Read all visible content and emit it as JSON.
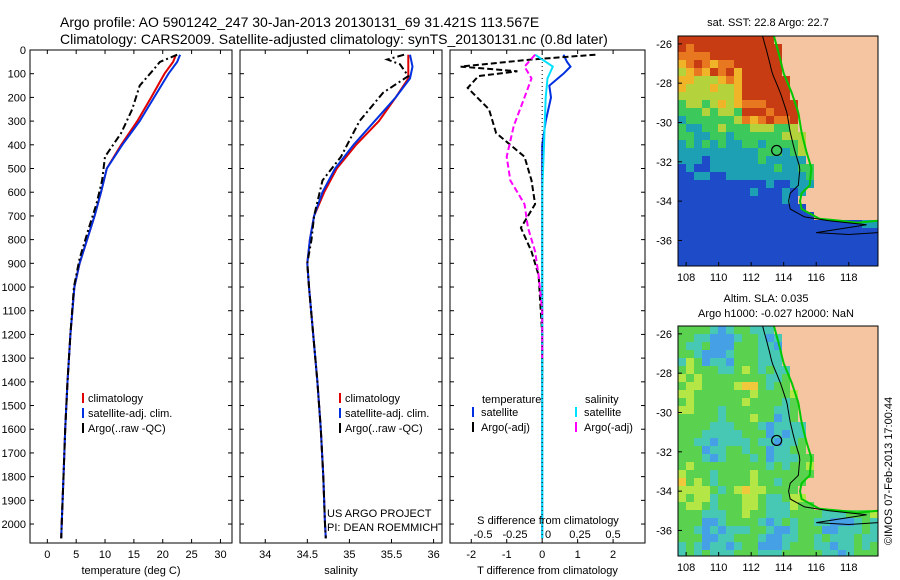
{
  "header": {
    "line1": "Argo profile: AO 5901242_247 30-Jan-2013 20130131_69 31.421S 113.567E",
    "line2": "Climatology: CARS2009. Satellite-adjusted climatology: synTS_20130131.nc (0.8d later)"
  },
  "colors": {
    "climatology": "#e00000",
    "satellite": "#0030e0",
    "argo": "#000000",
    "sal_satellite": "#00e0ff",
    "sal_argo": "#ff00ff",
    "land": "#f5c4a0",
    "coast": "#00c800"
  },
  "chart_data": [
    {
      "type": "line",
      "name": "temperature-panel",
      "xlabel": "temperature (deg C)",
      "ylabel": "",
      "xlim": [
        -3,
        32
      ],
      "ylim": [
        2080,
        0
      ],
      "xticks": [
        0,
        5,
        10,
        15,
        20,
        25,
        30
      ],
      "yticks": [
        0,
        100,
        200,
        300,
        400,
        500,
        600,
        700,
        800,
        900,
        1000,
        1100,
        1200,
        1300,
        1400,
        1500,
        1600,
        1700,
        1800,
        1900,
        2000
      ],
      "legend": [
        "climatology",
        "satellite-adj. clim.",
        "Argo(..raw -QC)"
      ],
      "series": [
        {
          "name": "climatology",
          "style": "solid",
          "color": "#e00000",
          "points": [
            [
              22.3,
              20
            ],
            [
              21.8,
              50
            ],
            [
              20.3,
              100
            ],
            [
              18.0,
              200
            ],
            [
              15.6,
              300
            ],
            [
              12.8,
              400
            ],
            [
              10.3,
              500
            ],
            [
              9.3,
              600
            ],
            [
              8.2,
              700
            ],
            [
              6.9,
              800
            ],
            [
              5.6,
              900
            ],
            [
              4.7,
              1000
            ],
            [
              4.0,
              1200
            ],
            [
              3.5,
              1400
            ],
            [
              3.1,
              1600
            ],
            [
              2.8,
              1800
            ],
            [
              2.5,
              2000
            ],
            [
              2.4,
              2060
            ]
          ]
        },
        {
          "name": "satellite-adj. clim.",
          "style": "solid",
          "color": "#0030e0",
          "points": [
            [
              23.0,
              20
            ],
            [
              22.5,
              50
            ],
            [
              21.0,
              100
            ],
            [
              18.5,
              200
            ],
            [
              16.0,
              300
            ],
            [
              13.0,
              400
            ],
            [
              10.3,
              500
            ],
            [
              9.3,
              600
            ],
            [
              8.2,
              700
            ],
            [
              6.9,
              800
            ],
            [
              5.6,
              900
            ],
            [
              4.7,
              1000
            ],
            [
              4.0,
              1200
            ],
            [
              3.5,
              1400
            ],
            [
              3.1,
              1600
            ],
            [
              2.8,
              1800
            ],
            [
              2.5,
              2000
            ],
            [
              2.4,
              2060
            ]
          ]
        },
        {
          "name": "Argo(..raw -QC)",
          "style": "dashdot",
          "color": "#000000",
          "points": [
            [
              22.5,
              20
            ],
            [
              19.5,
              50
            ],
            [
              18.5,
              80
            ],
            [
              16.0,
              150
            ],
            [
              14.7,
              250
            ],
            [
              12.8,
              350
            ],
            [
              10.0,
              450
            ],
            [
              9.5,
              550
            ],
            [
              8.5,
              650
            ],
            [
              7.2,
              750
            ],
            [
              5.6,
              880
            ],
            [
              4.6,
              1000
            ],
            [
              4.0,
              1200
            ],
            [
              3.5,
              1400
            ],
            [
              3.1,
              1600
            ],
            [
              2.8,
              1800
            ],
            [
              2.5,
              2000
            ],
            [
              2.4,
              2060
            ]
          ]
        }
      ]
    },
    {
      "type": "line",
      "name": "salinity-panel",
      "xlabel": "salinity",
      "ylabel": "",
      "xlim": [
        33.7,
        36.1
      ],
      "ylim": [
        2080,
        0
      ],
      "xticks": [
        34,
        34.5,
        35,
        35.5,
        36
      ],
      "legend": [
        "climatology",
        "satellite-adj. clim.",
        "Argo(..raw -QC)"
      ],
      "annotation": [
        "US ARGO PROJECT",
        "PI: DEAN ROEMMICH"
      ],
      "series": [
        {
          "name": "climatology",
          "style": "solid",
          "color": "#e00000",
          "points": [
            [
              35.7,
              20
            ],
            [
              35.7,
              70
            ],
            [
              35.7,
              120
            ],
            [
              35.55,
              200
            ],
            [
              35.35,
              300
            ],
            [
              35.08,
              400
            ],
            [
              34.85,
              500
            ],
            [
              34.7,
              600
            ],
            [
              34.58,
              700
            ],
            [
              34.53,
              800
            ],
            [
              34.5,
              900
            ],
            [
              34.52,
              1000
            ],
            [
              34.57,
              1200
            ],
            [
              34.62,
              1400
            ],
            [
              34.66,
              1600
            ],
            [
              34.69,
              1800
            ],
            [
              34.71,
              2000
            ],
            [
              34.72,
              2060
            ]
          ]
        },
        {
          "name": "satellite-adj. clim.",
          "style": "solid",
          "color": "#0030e0",
          "points": [
            [
              35.72,
              20
            ],
            [
              35.75,
              70
            ],
            [
              35.72,
              120
            ],
            [
              35.55,
              200
            ],
            [
              35.3,
              300
            ],
            [
              35.05,
              400
            ],
            [
              34.83,
              500
            ],
            [
              34.68,
              600
            ],
            [
              34.58,
              700
            ],
            [
              34.53,
              800
            ],
            [
              34.5,
              900
            ],
            [
              34.52,
              1000
            ],
            [
              34.57,
              1200
            ],
            [
              34.62,
              1400
            ],
            [
              34.66,
              1600
            ],
            [
              34.69,
              1800
            ],
            [
              34.71,
              2000
            ],
            [
              34.72,
              2060
            ]
          ]
        },
        {
          "name": "Argo(..raw -QC)",
          "style": "dashdot",
          "color": "#000000",
          "points": [
            [
              35.65,
              20
            ],
            [
              35.45,
              40
            ],
            [
              35.6,
              60
            ],
            [
              35.7,
              110
            ],
            [
              35.4,
              180
            ],
            [
              35.12,
              300
            ],
            [
              34.9,
              450
            ],
            [
              34.68,
              550
            ],
            [
              34.58,
              700
            ],
            [
              34.55,
              800
            ],
            [
              34.5,
              900
            ],
            [
              34.52,
              1000
            ],
            [
              34.57,
              1200
            ],
            [
              34.62,
              1400
            ],
            [
              34.66,
              1600
            ],
            [
              34.69,
              1800
            ],
            [
              34.71,
              2000
            ],
            [
              34.72,
              2060
            ]
          ]
        }
      ]
    },
    {
      "type": "line",
      "name": "difference-panel",
      "xlabel": "T difference from climatology",
      "x2label": "S difference from climatology",
      "xlim": [
        -2.6,
        2.9
      ],
      "ylim": [
        2080,
        0
      ],
      "xticks": [
        -2,
        -1,
        0,
        1,
        2
      ],
      "x2ticks": [
        "-0.5",
        "-0.25",
        "0",
        "0.25",
        "0.5"
      ],
      "legend_titles": [
        "temperature",
        "salinity"
      ],
      "legend": [
        "satellite",
        "Argo(-adj)",
        "satellite",
        "Argo(-adj)"
      ],
      "series": [
        {
          "name": "temperature satellite",
          "style": "solid",
          "color": "#0030e0",
          "points": [
            [
              0.6,
              20
            ],
            [
              0.7,
              50
            ],
            [
              0.8,
              70
            ],
            [
              0.6,
              100
            ],
            [
              0.2,
              150
            ],
            [
              0.25,
              200
            ],
            [
              0.1,
              300
            ],
            [
              0.0,
              400
            ],
            [
              0.0,
              500
            ],
            [
              0.0,
              600
            ],
            [
              0.0,
              800
            ],
            [
              0.0,
              1000
            ],
            [
              0.0,
              1400
            ],
            [
              0.0,
              1800
            ],
            [
              0.0,
              2060
            ]
          ]
        },
        {
          "name": "temperature Argo(-adj)",
          "style": "dashed",
          "color": "#000000",
          "points": [
            [
              1.5,
              20
            ],
            [
              -0.3,
              40
            ],
            [
              -2.3,
              70
            ],
            [
              -0.7,
              90
            ],
            [
              -1.8,
              110
            ],
            [
              -2.1,
              160
            ],
            [
              -1.5,
              250
            ],
            [
              -1.3,
              350
            ],
            [
              -0.5,
              450
            ],
            [
              -0.3,
              550
            ],
            [
              -0.2,
              650
            ],
            [
              -0.6,
              750
            ],
            [
              -0.3,
              850
            ],
            [
              -0.1,
              950
            ],
            [
              0.0,
              1200
            ],
            [
              0.0,
              1400
            ]
          ]
        },
        {
          "name": "salinity satellite",
          "style": "solid",
          "color": "#00e0ff",
          "points": [
            [
              -0.2,
              20
            ],
            [
              0.3,
              70
            ],
            [
              0.15,
              120
            ],
            [
              0.1,
              200
            ],
            [
              0.05,
              400
            ],
            [
              0.0,
              600
            ],
            [
              0.0,
              800
            ],
            [
              0.0,
              1000
            ],
            [
              0.0,
              1400
            ],
            [
              0.0,
              1800
            ],
            [
              0.0,
              2060
            ]
          ]
        },
        {
          "name": "salinity Argo(-adj)",
          "style": "dashed",
          "color": "#ff00ff",
          "points": [
            [
              -0.2,
              20
            ],
            [
              -0.5,
              70
            ],
            [
              -0.3,
              120
            ],
            [
              -0.5,
              200
            ],
            [
              -0.8,
              320
            ],
            [
              -1.0,
              450
            ],
            [
              -0.9,
              550
            ],
            [
              -0.5,
              650
            ],
            [
              -0.4,
              750
            ],
            [
              -0.2,
              850
            ],
            [
              -0.1,
              950
            ],
            [
              0.0,
              1100
            ],
            [
              0.0,
              1300
            ]
          ]
        }
      ]
    },
    {
      "type": "heatmap",
      "name": "sst-map",
      "title": "sat. SST: 22.8  Argo: 22.7",
      "xticks": [
        108,
        110,
        112,
        114,
        116,
        118
      ],
      "yticks": [
        -26,
        -28,
        -30,
        -32,
        -34,
        -36
      ],
      "xlim": [
        107.5,
        119.8
      ],
      "ylim": [
        -37.3,
        -25.6
      ],
      "float_position": [
        113.567,
        -31.421
      ]
    },
    {
      "type": "heatmap",
      "name": "sla-map",
      "title": "Altim. SLA: 0.035",
      "subtitle": "Argo h1000: -0.027  h2000: NaN",
      "xticks": [
        108,
        110,
        112,
        114,
        116,
        118
      ],
      "yticks": [
        -26,
        -28,
        -30,
        -32,
        -34,
        -36
      ],
      "xlim": [
        107.5,
        119.8
      ],
      "ylim": [
        -37.3,
        -25.6
      ],
      "float_position": [
        113.567,
        -31.421
      ]
    }
  ],
  "side_label": "©IMOS 07-Feb-2013 17:00:44"
}
